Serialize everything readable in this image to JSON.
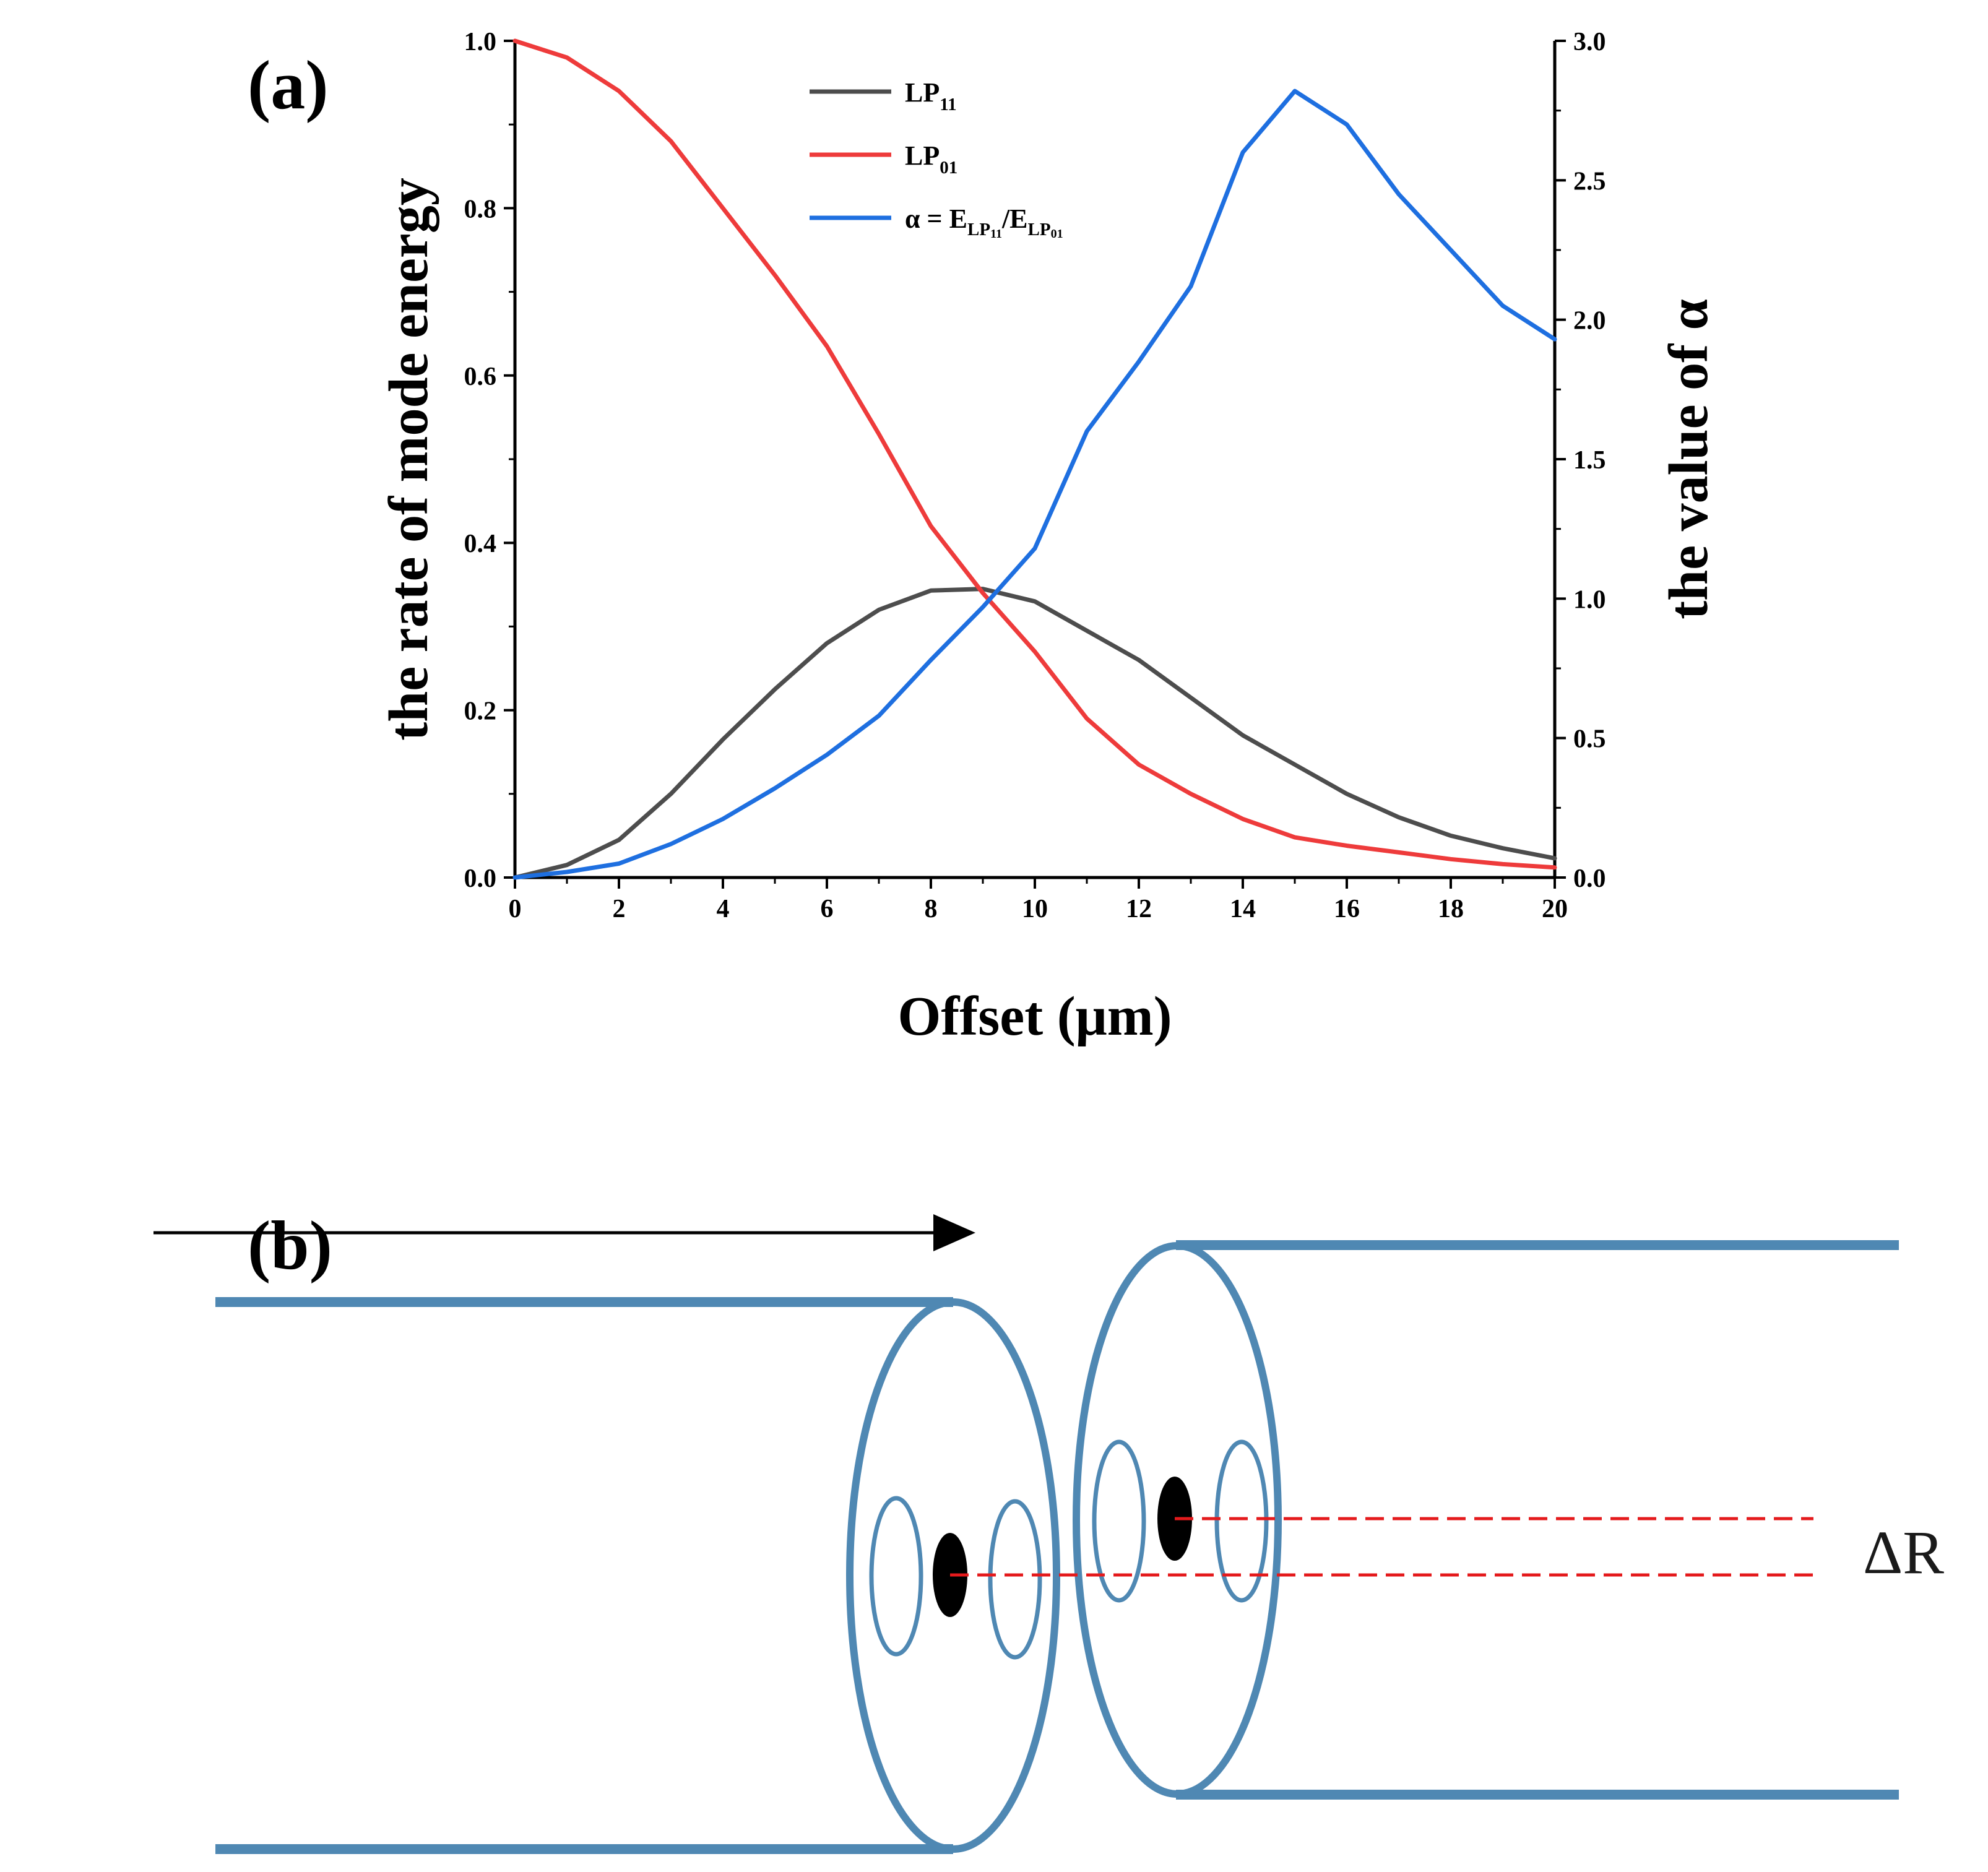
{
  "figure": {
    "panel_a_label": "(a)",
    "panel_b_label": "(b)"
  },
  "chart_data": {
    "type": "line",
    "title": "",
    "xlabel": "Offset (μm)",
    "ylabel": "the rate of mode energy",
    "y2label": "the value of α",
    "xlim": [
      0,
      20
    ],
    "ylim": [
      0,
      1.0
    ],
    "y2lim": [
      0,
      3.0
    ],
    "xticks": [
      0,
      2,
      4,
      6,
      8,
      10,
      12,
      14,
      16,
      18,
      20
    ],
    "yticks": [
      "0.0",
      "0.2",
      "0.4",
      "0.6",
      "0.8",
      "1.0"
    ],
    "y2ticks": [
      "0.0",
      "0.5",
      "1.0",
      "1.5",
      "2.0",
      "2.5",
      "3.0"
    ],
    "grid": false,
    "legend_position": "top-center",
    "legend": {
      "lp11": {
        "main": "LP",
        "sub": "11"
      },
      "lp01": {
        "main": "LP",
        "sub": "01"
      },
      "alpha": {
        "prefix": "α = E",
        "sub1": "LP",
        "subsub1": "11",
        "mid": "/E",
        "sub2": "LP",
        "subsub2": "01"
      }
    },
    "x": [
      0,
      1,
      2,
      3,
      4,
      5,
      6,
      7,
      8,
      9,
      10,
      11,
      12,
      13,
      14,
      15,
      16,
      17,
      18,
      19,
      20
    ],
    "series": [
      {
        "name": "LP11",
        "axis": "left",
        "color": "#4d4d4d",
        "values": [
          0.0,
          0.015,
          0.045,
          0.1,
          0.165,
          0.225,
          0.28,
          0.32,
          0.343,
          0.345,
          0.33,
          0.295,
          0.26,
          0.215,
          0.17,
          0.135,
          0.1,
          0.072,
          0.05,
          0.035,
          0.023
        ]
      },
      {
        "name": "LP01",
        "axis": "left",
        "color": "#ee3b3b",
        "values": [
          1.0,
          0.98,
          0.94,
          0.88,
          0.8,
          0.72,
          0.635,
          0.53,
          0.42,
          0.34,
          0.27,
          0.19,
          0.135,
          0.1,
          0.07,
          0.048,
          0.038,
          0.03,
          0.022,
          0.016,
          0.012
        ]
      },
      {
        "name": "α = E_LP11/E_LP01",
        "axis": "right",
        "color": "#1e6fe0",
        "values": [
          0.0,
          0.02,
          0.05,
          0.12,
          0.21,
          0.32,
          0.44,
          0.58,
          0.78,
          0.97,
          1.18,
          1.6,
          1.85,
          2.12,
          2.6,
          2.82,
          2.7,
          2.45,
          2.25,
          2.05,
          1.93
        ]
      }
    ]
  },
  "diagram": {
    "delta_label": "ΔR",
    "fiber_color": "#4f88b3",
    "offset_line_color": "#e41a1c",
    "core_color": "#000000"
  }
}
